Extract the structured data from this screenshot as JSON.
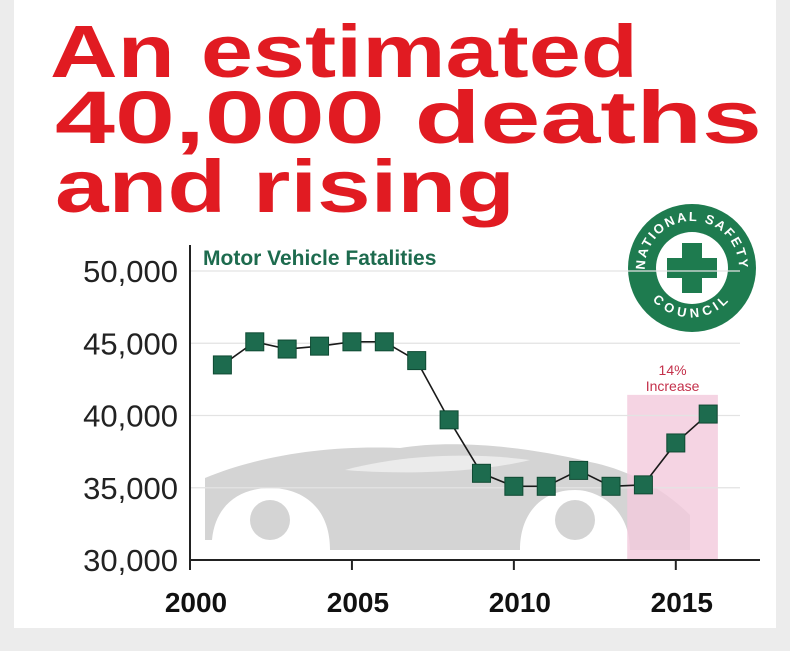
{
  "chart_data": {
    "type": "line",
    "title": [
      "An estimated",
      "40,000 deaths",
      "and rising"
    ],
    "subtitle": "Motor Vehicle Fatalities",
    "annotation": [
      "14%",
      "Increase"
    ],
    "highlight_range": [
      2013.5,
      2016.3
    ],
    "x": [
      2001,
      2002,
      2003,
      2004,
      2005,
      2006,
      2007,
      2008,
      2009,
      2010,
      2011,
      2012,
      2013,
      2014,
      2015,
      2016
    ],
    "series": [
      {
        "name": "Motor Vehicle Fatalities",
        "color": "#1d6b4e",
        "values": [
          43500,
          45100,
          44600,
          44800,
          45100,
          45100,
          43800,
          39700,
          36000,
          35100,
          35100,
          36200,
          35100,
          35200,
          38100,
          40100
        ]
      }
    ],
    "xlim": [
      2000,
      2017.6
    ],
    "xticks": [
      2000,
      2005,
      2010,
      2015
    ],
    "ylim": [
      30000,
      51800
    ],
    "yticks": [
      {
        "value": 30000,
        "label": "30,000"
      },
      {
        "value": 35000,
        "label": "35,000"
      },
      {
        "value": 40000,
        "label": "40,000"
      },
      {
        "value": 45000,
        "label": "45,000"
      },
      {
        "value": 50000,
        "label": "50,000"
      }
    ],
    "grid": true
  },
  "logo": {
    "top": "NATIONAL SAFETY",
    "bottom": "COUNCIL"
  }
}
